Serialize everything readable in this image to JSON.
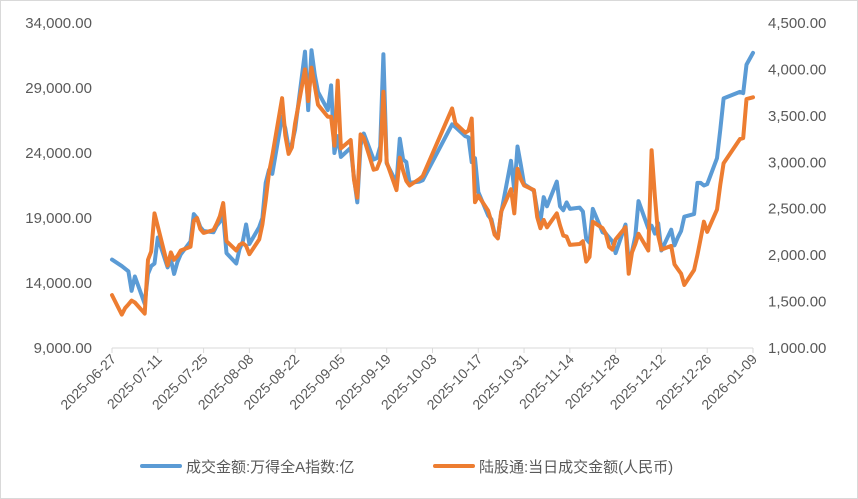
{
  "chart_data": {
    "type": "line",
    "title": "",
    "y_left": {
      "min": 9000,
      "max": 34000,
      "step": 5000,
      "tick_labels": [
        "9,000.00",
        "14,000.00",
        "19,000.00",
        "24,000.00",
        "29,000.00",
        "34,000.00"
      ]
    },
    "y_right": {
      "min": 1000,
      "max": 4500,
      "step": 500,
      "tick_labels": [
        "1,000.00",
        "1,500.00",
        "2,000.00",
        "2,500.00",
        "3,000.00",
        "3,500.00",
        "4,000.00",
        "4,500.00"
      ]
    },
    "x_range": [
      "2025-06-27",
      "2026-01-09"
    ],
    "x_tick_labels": [
      "2025-06-27",
      "2025-07-11",
      "2025-07-25",
      "2025-08-08",
      "2025-08-22",
      "2025-09-05",
      "2025-09-19",
      "2025-10-03",
      "2025-10-17",
      "2025-10-31",
      "2025-11-14",
      "2025-11-28",
      "2025-12-12",
      "2025-12-26",
      "2026-01-09"
    ],
    "grid": false,
    "legend_position": "bottom",
    "series": [
      {
        "name": "成交金额:万得全A指数:亿",
        "axis": "left",
        "color": "#5b9bd5",
        "points": [
          [
            "2025-06-27",
            15800
          ],
          [
            "2025-06-30",
            15300
          ],
          [
            "2025-07-01",
            15100
          ],
          [
            "2025-07-02",
            14900
          ],
          [
            "2025-07-03",
            13400
          ],
          [
            "2025-07-04",
            14500
          ],
          [
            "2025-07-07",
            12400
          ],
          [
            "2025-07-08",
            14700
          ],
          [
            "2025-07-09",
            15300
          ],
          [
            "2025-07-10",
            15500
          ],
          [
            "2025-07-11",
            17500
          ],
          [
            "2025-07-14",
            15200
          ],
          [
            "2025-07-15",
            15800
          ],
          [
            "2025-07-16",
            14700
          ],
          [
            "2025-07-17",
            15600
          ],
          [
            "2025-07-18",
            16200
          ],
          [
            "2025-07-21",
            17200
          ],
          [
            "2025-07-22",
            19300
          ],
          [
            "2025-07-23",
            19000
          ],
          [
            "2025-07-24",
            18300
          ],
          [
            "2025-07-25",
            18000
          ],
          [
            "2025-07-28",
            17900
          ],
          [
            "2025-07-29",
            18400
          ],
          [
            "2025-07-30",
            18700
          ],
          [
            "2025-07-31",
            19200
          ],
          [
            "2025-08-01",
            16300
          ],
          [
            "2025-08-04",
            15500
          ],
          [
            "2025-08-05",
            16600
          ],
          [
            "2025-08-06",
            17200
          ],
          [
            "2025-08-07",
            18500
          ],
          [
            "2025-08-08",
            17000
          ],
          [
            "2025-08-11",
            18300
          ],
          [
            "2025-08-12",
            19000
          ],
          [
            "2025-08-13",
            21700
          ],
          [
            "2025-08-14",
            22700
          ],
          [
            "2025-08-15",
            22400
          ],
          [
            "2025-08-18",
            26800
          ],
          [
            "2025-08-19",
            25900
          ],
          [
            "2025-08-20",
            24400
          ],
          [
            "2025-08-21",
            24700
          ],
          [
            "2025-08-22",
            25800
          ],
          [
            "2025-08-25",
            31800
          ],
          [
            "2025-08-26",
            27300
          ],
          [
            "2025-08-27",
            31900
          ],
          [
            "2025-08-28",
            30000
          ],
          [
            "2025-08-29",
            28700
          ],
          [
            "2025-09-01",
            27300
          ],
          [
            "2025-09-02",
            29200
          ],
          [
            "2025-09-03",
            24000
          ],
          [
            "2025-09-04",
            25300
          ],
          [
            "2025-09-05",
            23700
          ],
          [
            "2025-09-08",
            24400
          ],
          [
            "2025-09-09",
            22100
          ],
          [
            "2025-09-10",
            20200
          ],
          [
            "2025-09-11",
            24600
          ],
          [
            "2025-09-12",
            25500
          ],
          [
            "2025-09-15",
            23500
          ],
          [
            "2025-09-16",
            23600
          ],
          [
            "2025-09-17",
            24500
          ],
          [
            "2025-09-18",
            31600
          ],
          [
            "2025-09-19",
            23200
          ],
          [
            "2025-09-22",
            21700
          ],
          [
            "2025-09-23",
            25100
          ],
          [
            "2025-09-24",
            23500
          ],
          [
            "2025-09-25",
            23300
          ],
          [
            "2025-09-26",
            21700
          ],
          [
            "2025-09-29",
            21800
          ],
          [
            "2025-09-30",
            21900
          ],
          [
            "2025-10-09",
            26200
          ],
          [
            "2025-10-10",
            26000
          ],
          [
            "2025-10-13",
            25300
          ],
          [
            "2025-10-14",
            25200
          ],
          [
            "2025-10-15",
            23300
          ],
          [
            "2025-10-16",
            23600
          ],
          [
            "2025-10-17",
            21000
          ],
          [
            "2025-10-20",
            19200
          ],
          [
            "2025-10-21",
            18900
          ],
          [
            "2025-10-22",
            17800
          ],
          [
            "2025-10-23",
            17500
          ],
          [
            "2025-10-24",
            19400
          ],
          [
            "2025-10-27",
            23400
          ],
          [
            "2025-10-28",
            21100
          ],
          [
            "2025-10-29",
            24500
          ],
          [
            "2025-10-30",
            23100
          ],
          [
            "2025-10-31",
            21600
          ],
          [
            "2025-11-03",
            21100
          ],
          [
            "2025-11-04",
            19600
          ],
          [
            "2025-11-05",
            18700
          ],
          [
            "2025-11-06",
            20600
          ],
          [
            "2025-11-07",
            19900
          ],
          [
            "2025-11-10",
            21800
          ],
          [
            "2025-11-11",
            19900
          ],
          [
            "2025-11-12",
            19600
          ],
          [
            "2025-11-13",
            20200
          ],
          [
            "2025-11-14",
            19700
          ],
          [
            "2025-11-17",
            19800
          ],
          [
            "2025-11-18",
            19500
          ],
          [
            "2025-11-19",
            17400
          ],
          [
            "2025-11-20",
            17100
          ],
          [
            "2025-11-21",
            19700
          ],
          [
            "2025-11-24",
            17900
          ],
          [
            "2025-11-25",
            17800
          ],
          [
            "2025-11-26",
            17500
          ],
          [
            "2025-11-27",
            17200
          ],
          [
            "2025-11-28",
            16300
          ],
          [
            "2025-12-01",
            18500
          ],
          [
            "2025-12-02",
            15600
          ],
          [
            "2025-12-03",
            16400
          ],
          [
            "2025-12-04",
            17600
          ],
          [
            "2025-12-05",
            20300
          ],
          [
            "2025-12-08",
            18200
          ],
          [
            "2025-12-09",
            18400
          ],
          [
            "2025-12-10",
            17800
          ],
          [
            "2025-12-11",
            18600
          ],
          [
            "2025-12-12",
            16500
          ],
          [
            "2025-12-15",
            18100
          ],
          [
            "2025-12-16",
            16900
          ],
          [
            "2025-12-17",
            17500
          ],
          [
            "2025-12-18",
            18000
          ],
          [
            "2025-12-19",
            19100
          ],
          [
            "2025-12-22",
            19300
          ],
          [
            "2025-12-23",
            21700
          ],
          [
            "2025-12-24",
            21700
          ],
          [
            "2025-12-25",
            21500
          ],
          [
            "2025-12-26",
            21600
          ],
          [
            "2025-12-29",
            23600
          ],
          [
            "2025-12-30",
            25800
          ],
          [
            "2025-12-31",
            28200
          ],
          [
            "2026-01-05",
            28700
          ],
          [
            "2026-01-06",
            28600
          ],
          [
            "2026-01-07",
            30800
          ],
          [
            "2026-01-09",
            31700
          ]
        ]
      },
      {
        "name": "陆股通:当日成交金额(人民币)",
        "axis": "right",
        "color": "#ed7d31",
        "points": [
          [
            "2025-06-27",
            1570
          ],
          [
            "2025-06-30",
            1360
          ],
          [
            "2025-07-01",
            1430
          ],
          [
            "2025-07-02",
            1470
          ],
          [
            "2025-07-03",
            1510
          ],
          [
            "2025-07-04",
            1490
          ],
          [
            "2025-07-07",
            1370
          ],
          [
            "2025-07-08",
            1950
          ],
          [
            "2025-07-09",
            2040
          ],
          [
            "2025-07-10",
            2450
          ],
          [
            "2025-07-11",
            2310
          ],
          [
            "2025-07-14",
            1890
          ],
          [
            "2025-07-15",
            2030
          ],
          [
            "2025-07-16",
            1950
          ],
          [
            "2025-07-17",
            1990
          ],
          [
            "2025-07-18",
            2050
          ],
          [
            "2025-07-21",
            2090
          ],
          [
            "2025-07-22",
            2370
          ],
          [
            "2025-07-23",
            2400
          ],
          [
            "2025-07-24",
            2280
          ],
          [
            "2025-07-25",
            2240
          ],
          [
            "2025-07-28",
            2270
          ],
          [
            "2025-07-29",
            2340
          ],
          [
            "2025-07-30",
            2420
          ],
          [
            "2025-07-31",
            2560
          ],
          [
            "2025-08-01",
            2150
          ],
          [
            "2025-08-04",
            2050
          ],
          [
            "2025-08-05",
            2110
          ],
          [
            "2025-08-06",
            2130
          ],
          [
            "2025-08-07",
            2100
          ],
          [
            "2025-08-08",
            2010
          ],
          [
            "2025-08-11",
            2170
          ],
          [
            "2025-08-12",
            2330
          ],
          [
            "2025-08-13",
            2590
          ],
          [
            "2025-08-14",
            2890
          ],
          [
            "2025-08-15",
            3070
          ],
          [
            "2025-08-18",
            3690
          ],
          [
            "2025-08-19",
            3290
          ],
          [
            "2025-08-20",
            3090
          ],
          [
            "2025-08-21",
            3160
          ],
          [
            "2025-08-22",
            3420
          ],
          [
            "2025-08-25",
            4000
          ],
          [
            "2025-08-26",
            3660
          ],
          [
            "2025-08-27",
            4020
          ],
          [
            "2025-08-28",
            3820
          ],
          [
            "2025-08-29",
            3620
          ],
          [
            "2025-09-01",
            3490
          ],
          [
            "2025-09-02",
            3490
          ],
          [
            "2025-09-03",
            3180
          ],
          [
            "2025-09-04",
            3880
          ],
          [
            "2025-09-05",
            3150
          ],
          [
            "2025-09-08",
            3240
          ],
          [
            "2025-09-09",
            2810
          ],
          [
            "2025-09-10",
            2620
          ],
          [
            "2025-09-11",
            3300
          ],
          [
            "2025-09-12",
            3260
          ],
          [
            "2025-09-15",
            2920
          ],
          [
            "2025-09-16",
            2930
          ],
          [
            "2025-09-17",
            3020
          ],
          [
            "2025-09-18",
            3760
          ],
          [
            "2025-09-19",
            3000
          ],
          [
            "2025-09-22",
            2700
          ],
          [
            "2025-09-23",
            3050
          ],
          [
            "2025-09-24",
            2910
          ],
          [
            "2025-09-25",
            2800
          ],
          [
            "2025-09-26",
            2750
          ],
          [
            "2025-09-29",
            2820
          ],
          [
            "2025-09-30",
            2850
          ],
          [
            "2025-10-09",
            3580
          ],
          [
            "2025-10-10",
            3420
          ],
          [
            "2025-10-13",
            3320
          ],
          [
            "2025-10-14",
            3340
          ],
          [
            "2025-10-15",
            3470
          ],
          [
            "2025-10-16",
            2570
          ],
          [
            "2025-10-17",
            2640
          ],
          [
            "2025-10-20",
            2480
          ],
          [
            "2025-10-21",
            2360
          ],
          [
            "2025-10-22",
            2220
          ],
          [
            "2025-10-23",
            2180
          ],
          [
            "2025-10-24",
            2470
          ],
          [
            "2025-10-27",
            2710
          ],
          [
            "2025-10-28",
            2450
          ],
          [
            "2025-10-29",
            2930
          ],
          [
            "2025-10-30",
            2820
          ],
          [
            "2025-10-31",
            2750
          ],
          [
            "2025-11-03",
            2700
          ],
          [
            "2025-11-04",
            2410
          ],
          [
            "2025-11-05",
            2290
          ],
          [
            "2025-11-06",
            2380
          ],
          [
            "2025-11-07",
            2300
          ],
          [
            "2025-11-10",
            2450
          ],
          [
            "2025-11-11",
            2320
          ],
          [
            "2025-11-12",
            2210
          ],
          [
            "2025-11-13",
            2200
          ],
          [
            "2025-11-14",
            2110
          ],
          [
            "2025-11-17",
            2120
          ],
          [
            "2025-11-18",
            2150
          ],
          [
            "2025-11-19",
            1930
          ],
          [
            "2025-11-20",
            1980
          ],
          [
            "2025-11-21",
            2360
          ],
          [
            "2025-11-24",
            2290
          ],
          [
            "2025-11-25",
            2230
          ],
          [
            "2025-11-26",
            2090
          ],
          [
            "2025-11-27",
            2060
          ],
          [
            "2025-11-28",
            2170
          ],
          [
            "2025-12-01",
            2300
          ],
          [
            "2025-12-02",
            1800
          ],
          [
            "2025-12-03",
            2030
          ],
          [
            "2025-12-04",
            2120
          ],
          [
            "2025-12-05",
            2230
          ],
          [
            "2025-12-08",
            2050
          ],
          [
            "2025-12-09",
            3130
          ],
          [
            "2025-12-10",
            2630
          ],
          [
            "2025-12-11",
            2210
          ],
          [
            "2025-12-12",
            2060
          ],
          [
            "2025-12-15",
            2100
          ],
          [
            "2025-12-16",
            1900
          ],
          [
            "2025-12-17",
            1850
          ],
          [
            "2025-12-18",
            1800
          ],
          [
            "2025-12-19",
            1680
          ],
          [
            "2025-12-22",
            1840
          ],
          [
            "2025-12-23",
            2000
          ],
          [
            "2025-12-24",
            2180
          ],
          [
            "2025-12-25",
            2360
          ],
          [
            "2025-12-26",
            2250
          ],
          [
            "2025-12-29",
            2490
          ],
          [
            "2025-12-30",
            2760
          ],
          [
            "2025-12-31",
            2990
          ],
          [
            "2026-01-05",
            3250
          ],
          [
            "2026-01-06",
            3260
          ],
          [
            "2026-01-07",
            3680
          ],
          [
            "2026-01-09",
            3700
          ]
        ]
      }
    ]
  }
}
